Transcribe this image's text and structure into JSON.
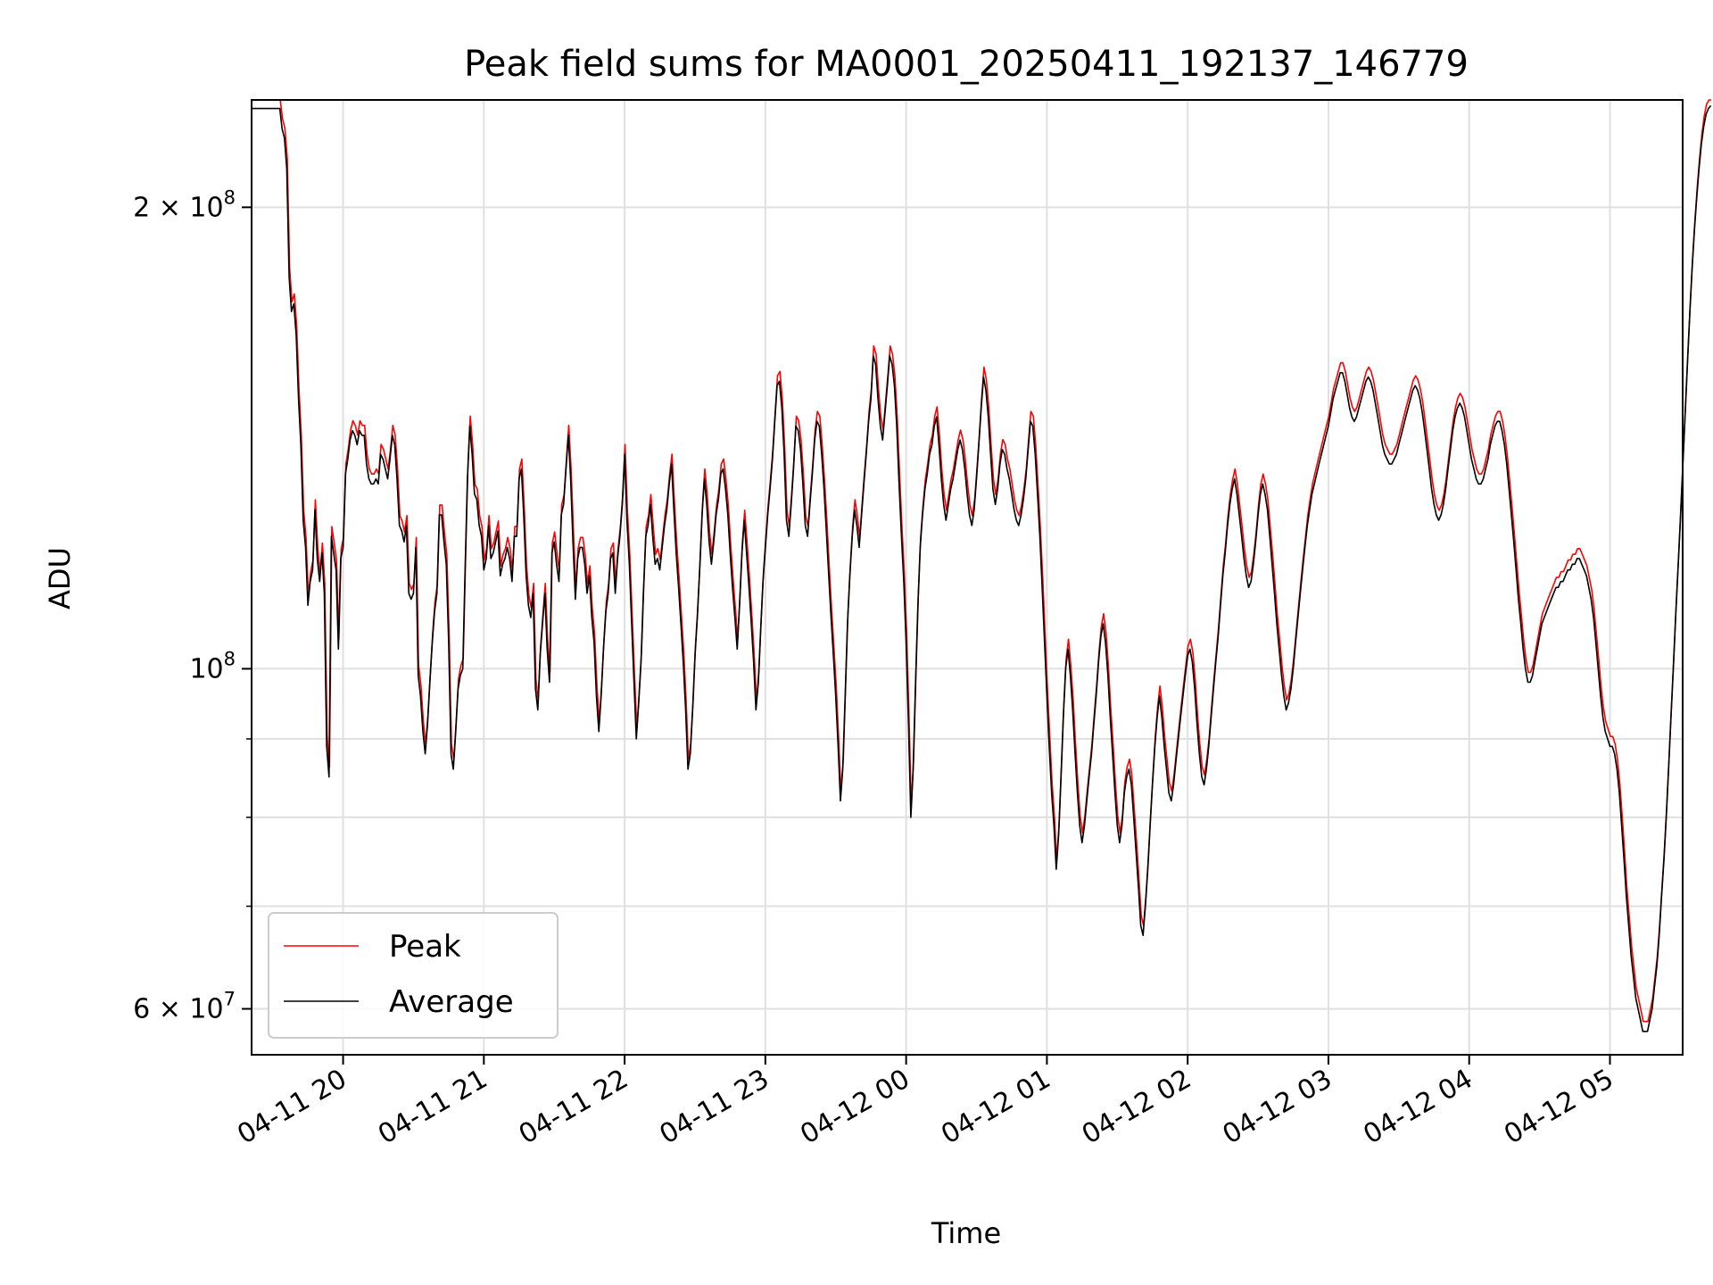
{
  "chart_data": {
    "type": "line",
    "title": "Peak field sums for MA0001_20250411_192137_146779",
    "xlabel": "Time",
    "ylabel": "ADU",
    "yscale": "log",
    "grid": true,
    "legend_position": "lower-left",
    "xlim": [
      "2025-04-11 19:21",
      "2025-04-12 05:31"
    ],
    "ylim": [
      56000000,
      235000000
    ],
    "x_ticks": [
      "04-11 20",
      "04-11 21",
      "04-11 22",
      "04-11 23",
      "04-12 00",
      "04-12 01",
      "04-12 02",
      "04-12 03",
      "04-12 04",
      "04-12 05"
    ],
    "x_tick_times": [
      "2025-04-11 20:00",
      "2025-04-11 21:00",
      "2025-04-11 22:00",
      "2025-04-11 23:00",
      "2025-04-12 00:00",
      "2025-04-12 01:00",
      "2025-04-12 02:00",
      "2025-04-12 03:00",
      "2025-04-12 04:00",
      "2025-04-12 05:00"
    ],
    "y_major_ticks": [
      {
        "value": 200000000,
        "mantissa": "2",
        "exponent": "8"
      },
      {
        "value": 100000000,
        "mantissa": "",
        "exponent": "8"
      },
      {
        "value": 60000000,
        "mantissa": "6",
        "exponent": "7"
      }
    ],
    "y_minor_ticks": [
      70000000,
      80000000,
      90000000
    ],
    "tick_base": "10",
    "times_sign": "×",
    "series": [
      {
        "name": "Peak",
        "color": "#ff0000",
        "dx_min": 0.2,
        "dy_factor": 1.015
      },
      {
        "name": "Average",
        "color": "#000000",
        "dx_min": 0,
        "dy_factor": 1.0
      }
    ],
    "start_time": "2025-04-11 19:21",
    "sample_interval_min": 1,
    "values_millions": [
      232,
      232,
      232,
      232,
      232,
      232,
      232,
      232,
      232,
      232,
      232,
      232,
      232,
      225,
      222,
      212,
      180,
      171,
      173,
      165,
      150,
      140,
      125,
      120,
      110,
      114,
      116,
      127,
      118,
      114,
      119,
      112,
      89,
      85,
      122,
      119,
      116,
      103,
      118,
      120,
      134,
      137,
      141,
      143,
      142,
      140,
      143,
      142,
      142,
      136,
      133,
      132,
      132,
      133,
      132,
      138,
      137,
      135,
      133,
      137,
      142,
      140,
      133,
      124,
      123,
      121,
      124,
      112,
      111,
      112,
      120,
      99,
      96,
      91,
      88,
      92,
      98,
      104,
      109,
      112,
      126,
      126,
      121,
      117,
      104,
      88,
      86,
      91,
      97,
      99,
      100,
      116,
      133,
      144,
      138,
      130,
      129,
      124,
      122,
      116,
      118,
      124,
      118,
      119,
      121,
      123,
      115,
      117,
      118,
      120,
      118,
      114,
      122,
      122,
      133,
      135,
      126,
      115,
      110,
      108,
      112,
      97,
      94,
      102,
      107,
      112,
      103,
      98,
      119,
      121,
      117,
      114,
      126,
      128,
      135,
      142,
      133,
      121,
      111,
      118,
      120,
      120,
      117,
      112,
      115,
      108,
      104,
      96,
      91,
      96,
      103,
      109,
      112,
      118,
      119,
      112,
      118,
      122,
      128,
      138,
      125,
      117,
      107,
      98,
      90,
      95,
      101,
      112,
      122,
      124,
      128,
      122,
      117,
      118,
      116,
      120,
      124,
      127,
      132,
      136,
      127,
      119,
      113,
      107,
      101,
      94,
      86,
      88,
      94,
      102,
      108,
      116,
      126,
      133,
      128,
      121,
      117,
      121,
      126,
      129,
      134,
      135,
      131,
      126,
      119,
      113,
      108,
      103,
      110,
      119,
      125,
      119,
      113,
      107,
      101,
      94,
      98,
      106,
      114,
      120,
      126,
      131,
      137,
      145,
      153,
      154,
      148,
      138,
      125,
      122,
      128,
      135,
      144,
      143,
      139,
      132,
      124,
      122,
      128,
      134,
      141,
      145,
      144,
      138,
      131,
      123,
      115,
      108,
      102,
      96,
      89,
      82,
      86,
      96,
      107,
      115,
      122,
      127,
      124,
      120,
      126,
      132,
      138,
      145,
      150,
      160,
      158,
      150,
      144,
      141,
      147,
      153,
      160,
      158,
      153,
      144,
      132,
      122,
      114,
      104,
      92,
      80,
      86,
      98,
      110,
      120,
      126,
      131,
      134,
      138,
      140,
      144,
      146,
      140,
      133,
      128,
      125,
      128,
      131,
      133,
      136,
      139,
      141,
      139,
      135,
      130,
      126,
      124,
      127,
      133,
      140,
      148,
      155,
      152,
      146,
      138,
      131,
      128,
      131,
      136,
      139,
      138,
      135,
      133,
      130,
      127,
      125,
      124,
      126,
      129,
      133,
      139,
      145,
      144,
      138,
      130,
      122,
      113,
      104,
      96,
      89,
      83,
      79,
      74,
      78,
      85,
      93,
      100,
      103,
      99,
      94,
      88,
      83,
      79,
      77,
      79,
      82,
      85,
      88,
      92,
      96,
      101,
      105,
      107,
      104,
      99,
      93,
      88,
      83,
      79,
      77,
      79,
      83,
      85,
      86,
      84,
      80,
      76,
      72,
      68,
      67,
      70,
      74,
      79,
      84,
      89,
      93,
      96,
      93,
      89,
      86,
      83,
      82,
      84,
      87,
      90,
      93,
      96,
      99,
      102,
      103,
      101,
      97,
      92,
      88,
      85,
      84,
      86,
      89,
      93,
      97,
      101,
      105,
      110,
      115,
      119,
      124,
      128,
      131,
      133,
      130,
      126,
      122,
      118,
      115,
      113,
      114,
      117,
      121,
      126,
      130,
      132,
      130,
      127,
      122,
      117,
      112,
      107,
      103,
      99,
      96,
      94,
      95,
      97,
      100,
      104,
      108,
      112,
      116,
      120,
      124,
      127,
      130,
      132,
      134,
      136,
      138,
      140,
      142,
      144,
      147,
      150,
      152,
      154,
      156,
      156,
      154,
      151,
      148,
      146,
      145,
      146,
      148,
      150,
      152,
      154,
      155,
      154,
      152,
      149,
      146,
      143,
      140,
      138,
      137,
      136,
      136,
      137,
      138,
      140,
      142,
      144,
      146,
      148,
      150,
      152,
      153,
      152,
      150,
      147,
      143,
      139,
      135,
      131,
      128,
      126,
      125,
      126,
      128,
      131,
      135,
      139,
      143,
      146,
      148,
      149,
      148,
      146,
      143,
      140,
      137,
      135,
      133,
      132,
      132,
      133,
      135,
      137,
      140,
      142,
      144,
      145,
      145,
      143,
      140,
      136,
      131,
      126,
      121,
      116,
      111,
      107,
      103,
      100,
      98,
      98,
      99,
      101,
      103,
      105,
      107,
      108,
      109,
      110,
      111,
      112,
      113,
      113,
      114,
      114,
      115,
      116,
      116,
      117,
      117,
      118,
      118,
      117,
      116,
      115,
      113,
      111,
      108,
      104,
      100,
      96,
      93,
      91,
      90,
      89,
      89,
      88,
      86,
      83,
      79,
      75,
      71,
      68,
      65,
      63,
      61,
      60,
      59,
      58,
      58,
      58,
      59,
      60,
      62,
      64,
      67,
      71,
      75,
      80,
      86,
      93,
      100,
      108,
      116,
      125,
      135,
      146,
      158,
      170,
      182,
      193,
      203,
      212,
      220,
      226,
      230,
      232,
      233
    ]
  }
}
